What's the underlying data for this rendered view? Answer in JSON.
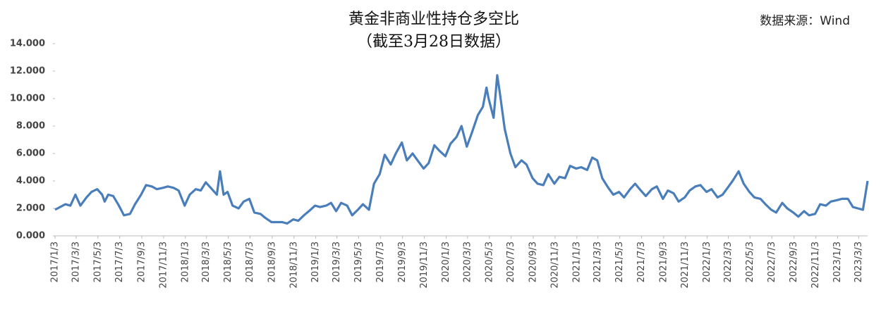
{
  "chart_data": {
    "type": "line",
    "title": "黄金非商业性持仓多空比",
    "subtitle": "（截至3月28日数据）",
    "source": "数据来源：Wind",
    "color": "#4a7ebb",
    "x": [
      "2017/1/3",
      "2017/1/17",
      "2017/2/1",
      "2017/2/15",
      "2017/3/1",
      "2017/3/15",
      "2017/4/1",
      "2017/4/15",
      "2017/5/1",
      "2017/5/15",
      "2017/5/22",
      "2017/6/1",
      "2017/6/15",
      "2017/7/1",
      "2017/7/15",
      "2017/8/1",
      "2017/8/15",
      "2017/9/1",
      "2017/9/15",
      "2017/10/1",
      "2017/10/15",
      "2017/11/1",
      "2017/11/15",
      "2017/12/1",
      "2017/12/15",
      "2018/1/1",
      "2018/1/15",
      "2018/2/1",
      "2018/2/15",
      "2018/3/1",
      "2018/3/15",
      "2018/4/1",
      "2018/4/10",
      "2018/4/20",
      "2018/5/1",
      "2018/5/15",
      "2018/6/1",
      "2018/6/15",
      "2018/7/1",
      "2018/7/15",
      "2018/8/1",
      "2018/8/15",
      "2018/9/1",
      "2018/9/15",
      "2018/10/1",
      "2018/10/15",
      "2018/11/1",
      "2018/11/15",
      "2018/12/1",
      "2018/12/15",
      "2019/1/1",
      "2019/1/15",
      "2019/2/1",
      "2019/2/15",
      "2019/3/1",
      "2019/3/15",
      "2019/4/1",
      "2019/4/15",
      "2019/5/1",
      "2019/5/15",
      "2019/6/1",
      "2019/6/15",
      "2019/7/1",
      "2019/7/15",
      "2019/8/1",
      "2019/8/15",
      "2019/9/1",
      "2019/9/15",
      "2019/10/1",
      "2019/10/15",
      "2019/11/1",
      "2019/11/15",
      "2019/12/1",
      "2019/12/15",
      "2020/1/1",
      "2020/1/15",
      "2020/2/1",
      "2020/2/15",
      "2020/3/1",
      "2020/3/15",
      "2020/4/1",
      "2020/4/15",
      "2020/4/25",
      "2020/5/1",
      "2020/5/15",
      "2020/5/25",
      "2020/6/1",
      "2020/6/15",
      "2020/7/1",
      "2020/7/15",
      "2020/8/1",
      "2020/8/15",
      "2020/9/1",
      "2020/9/15",
      "2020/10/1",
      "2020/10/15",
      "2020/11/1",
      "2020/11/15",
      "2020/12/1",
      "2020/12/15",
      "2021/1/1",
      "2021/1/15",
      "2021/2/1",
      "2021/2/15",
      "2021/3/1",
      "2021/3/15",
      "2021/4/1",
      "2021/4/15",
      "2021/5/1",
      "2021/5/15",
      "2021/6/1",
      "2021/6/15",
      "2021/7/1",
      "2021/7/15",
      "2021/8/1",
      "2021/8/15",
      "2021/9/1",
      "2021/9/15",
      "2021/10/1",
      "2021/10/15",
      "2021/11/1",
      "2021/11/15",
      "2021/12/1",
      "2021/12/15",
      "2022/1/1",
      "2022/1/15",
      "2022/2/1",
      "2022/2/15",
      "2022/3/1",
      "2022/3/15",
      "2022/4/1",
      "2022/4/15",
      "2022/5/1",
      "2022/5/15",
      "2022/6/1",
      "2022/6/15",
      "2022/7/1",
      "2022/7/15",
      "2022/8/1",
      "2022/8/15",
      "2022/9/1",
      "2022/9/15",
      "2022/10/1",
      "2022/10/15",
      "2022/11/1",
      "2022/11/15",
      "2022/12/1",
      "2022/12/15",
      "2023/1/1",
      "2023/1/15",
      "2023/2/1",
      "2023/2/15",
      "2023/3/1",
      "2023/3/15",
      "2023/3/28"
    ],
    "values": [
      1.9,
      2.1,
      2.3,
      2.2,
      3.0,
      2.2,
      2.8,
      3.2,
      3.4,
      3.0,
      2.5,
      3.0,
      2.9,
      2.2,
      1.5,
      1.6,
      2.3,
      3.0,
      3.7,
      3.6,
      3.4,
      3.5,
      3.6,
      3.5,
      3.3,
      2.2,
      3.0,
      3.4,
      3.3,
      3.9,
      3.5,
      3.0,
      4.7,
      3.0,
      3.2,
      2.2,
      2.0,
      2.5,
      2.7,
      1.7,
      1.6,
      1.3,
      1.0,
      1.0,
      1.0,
      0.9,
      1.2,
      1.1,
      1.5,
      1.8,
      2.2,
      2.1,
      2.2,
      2.4,
      1.8,
      2.4,
      2.2,
      1.5,
      1.9,
      2.3,
      1.9,
      3.8,
      4.5,
      5.9,
      5.2,
      6.0,
      6.8,
      5.5,
      6.0,
      5.5,
      4.9,
      5.3,
      6.6,
      6.2,
      5.8,
      6.7,
      7.2,
      8.0,
      6.5,
      7.5,
      8.8,
      9.4,
      10.8,
      10.0,
      8.6,
      11.7,
      10.5,
      7.8,
      6.0,
      5.0,
      5.5,
      5.2,
      4.2,
      3.8,
      3.7,
      4.5,
      3.8,
      4.3,
      4.2,
      5.1,
      4.9,
      5.0,
      4.8,
      5.7,
      5.5,
      4.2,
      3.5,
      3.0,
      3.2,
      2.8,
      3.4,
      3.8,
      3.3,
      2.9,
      3.4,
      3.6,
      2.7,
      3.3,
      3.1,
      2.5,
      2.8,
      3.3,
      3.6,
      3.7,
      3.2,
      3.4,
      2.8,
      3.0,
      3.5,
      4.0,
      4.7,
      3.8,
      3.2,
      2.8,
      2.7,
      2.3,
      1.9,
      1.7,
      2.4,
      2.0,
      1.7,
      1.4,
      1.8,
      1.5,
      1.6,
      2.3,
      2.2,
      2.5,
      2.6,
      2.7,
      2.7,
      2.1,
      2.0,
      1.9,
      4.0
    ],
    "xlim": [
      "2017/1/3",
      "2023/3/28"
    ],
    "xticks": [
      "2017/1/3",
      "2017/3/3",
      "2017/5/3",
      "2017/7/3",
      "2017/9/3",
      "2017/11/3",
      "2018/1/3",
      "2018/3/3",
      "2018/5/3",
      "2018/7/3",
      "2018/9/3",
      "2018/11/3",
      "2019/1/3",
      "2019/3/3",
      "2019/5/3",
      "2019/7/3",
      "2019/9/3",
      "2019/11/3",
      "2020/1/3",
      "2020/3/3",
      "2020/5/3",
      "2020/7/3",
      "2020/9/3",
      "2020/11/3",
      "2021/1/3",
      "2021/3/3",
      "2021/5/3",
      "2021/7/3",
      "2021/9/3",
      "2021/11/3",
      "2022/1/3",
      "2022/3/3",
      "2022/5/3",
      "2022/7/3",
      "2022/9/3",
      "2022/11/3",
      "2023/1/3",
      "2023/3/3"
    ],
    "ylim": [
      0,
      14
    ],
    "yticks": [
      {
        "value": 0,
        "label": "0.000"
      },
      {
        "value": 2,
        "label": "2.000"
      },
      {
        "value": 4,
        "label": "4.000"
      },
      {
        "value": 6,
        "label": "6.000"
      },
      {
        "value": 8,
        "label": "8.000"
      },
      {
        "value": 10,
        "label": "10.000"
      },
      {
        "value": 12,
        "label": "12.000"
      },
      {
        "value": 14,
        "label": "14.000"
      }
    ]
  }
}
